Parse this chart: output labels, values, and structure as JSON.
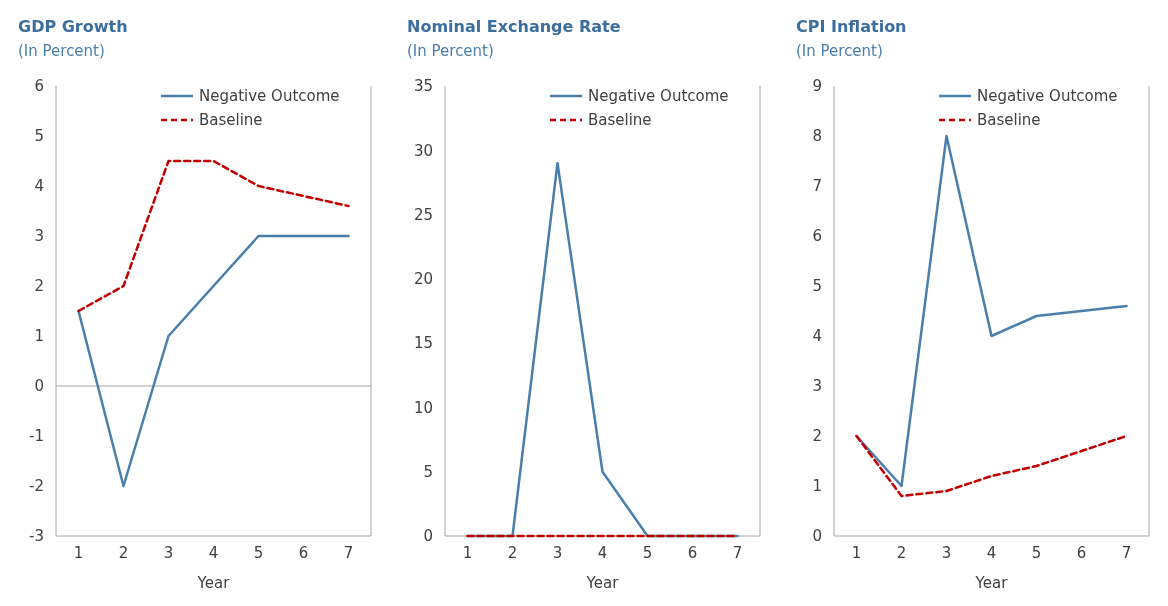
{
  "chart_data": [
    {
      "type": "line",
      "title": "GDP Growth",
      "subtitle": "(In Percent)",
      "xlabel": "Year",
      "x": [
        1,
        2,
        3,
        4,
        5,
        6,
        7
      ],
      "xlim": [
        0.5,
        7.5
      ],
      "xticks": [
        1,
        2,
        3,
        4,
        5,
        6,
        7
      ],
      "ylim": [
        -3,
        6
      ],
      "yticks": [
        -3,
        -2,
        -1,
        0,
        1,
        2,
        3,
        4,
        5,
        6
      ],
      "grid": false,
      "legend": "top right",
      "ref_lines": [
        {
          "axis": "y",
          "value": 0,
          "color": "#a6a6a6"
        }
      ],
      "series": [
        {
          "name": "Negative Outcome",
          "color": "#4a7eab",
          "line_style": "solid",
          "values": [
            1.5,
            -2,
            1,
            2,
            3,
            3,
            3
          ]
        },
        {
          "name": "Baseline",
          "color": "#c00000",
          "line_style": "dashed",
          "values": [
            1.5,
            2,
            4.5,
            4.5,
            4,
            3.8,
            3.6
          ]
        }
      ]
    },
    {
      "type": "line",
      "title": "Nominal Exchange Rate",
      "subtitle": "(In Percent)",
      "xlabel": "Year",
      "x": [
        1,
        2,
        3,
        4,
        5,
        6,
        7
      ],
      "xlim": [
        0.5,
        7.5
      ],
      "xticks": [
        1,
        2,
        3,
        4,
        5,
        6,
        7
      ],
      "ylim": [
        0,
        35
      ],
      "yticks": [
        0,
        5,
        10,
        15,
        20,
        25,
        30,
        35
      ],
      "grid": false,
      "legend": "top right",
      "series": [
        {
          "name": "Negative Outcome",
          "color": "#4a7eab",
          "line_style": "solid",
          "values": [
            0,
            0,
            29,
            5,
            0,
            0,
            0
          ]
        },
        {
          "name": "Baseline",
          "color": "#c00000",
          "line_style": "dashed",
          "values": [
            0,
            0,
            0,
            0,
            0,
            0,
            0
          ]
        }
      ]
    },
    {
      "type": "line",
      "title": "CPI Inflation",
      "subtitle": "(In Percent)",
      "xlabel": "Year",
      "x": [
        1,
        2,
        3,
        4,
        5,
        6,
        7
      ],
      "xlim": [
        0.5,
        7.5
      ],
      "xticks": [
        1,
        2,
        3,
        4,
        5,
        6,
        7
      ],
      "ylim": [
        0,
        9
      ],
      "yticks": [
        0,
        1,
        2,
        3,
        4,
        5,
        6,
        7,
        8,
        9
      ],
      "grid": false,
      "legend": "top right",
      "series": [
        {
          "name": "Negative Outcome",
          "color": "#4a7eab",
          "line_style": "solid",
          "values": [
            2,
            1,
            8,
            4,
            4.4,
            4.5,
            4.6
          ]
        },
        {
          "name": "Baseline",
          "color": "#c00000",
          "line_style": "dashed",
          "values": [
            2,
            0.8,
            0.9,
            1.2,
            1.4,
            1.7,
            2
          ]
        }
      ]
    }
  ]
}
